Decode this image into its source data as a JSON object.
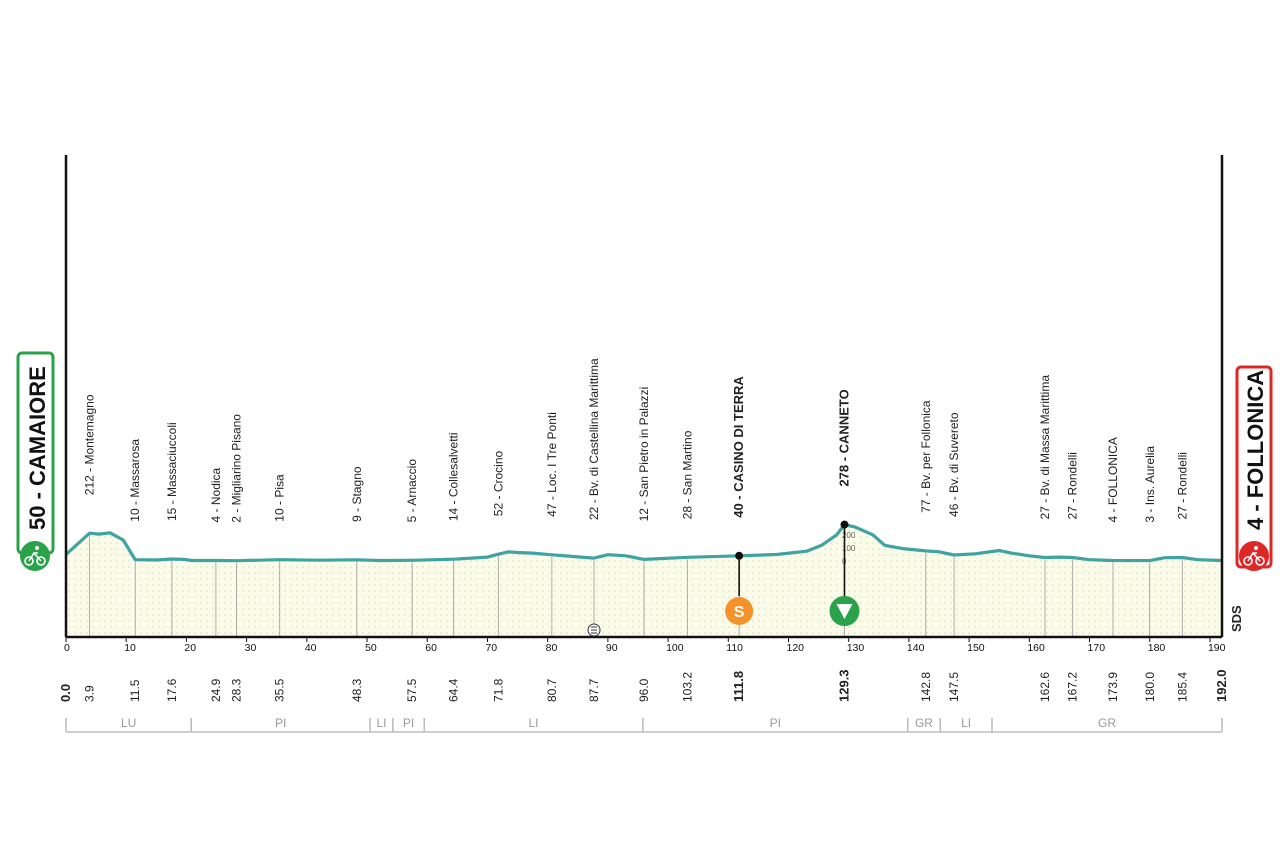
{
  "start": {
    "label": "50 - CAMAIORE",
    "color": "#2aa24a",
    "icon": "cyclist-icon"
  },
  "finish": {
    "label": "4 - FOLLONICA",
    "color": "#e02727",
    "icon": "cyclist-icon"
  },
  "watermark": "SDS",
  "chart_data": {
    "type": "area",
    "xlim": [
      0,
      192
    ],
    "ylim": [
      0,
      300
    ],
    "x_ticks": [
      0,
      10,
      20,
      30,
      40,
      50,
      60,
      70,
      80,
      90,
      100,
      110,
      120,
      130,
      140,
      150,
      160,
      170,
      180,
      190
    ],
    "y_ticks": [
      0,
      100,
      200
    ],
    "profile": [
      [
        0,
        50
      ],
      [
        3.9,
        212
      ],
      [
        5.5,
        205
      ],
      [
        7.3,
        215
      ],
      [
        9.5,
        160
      ],
      [
        11.5,
        10
      ],
      [
        15,
        8
      ],
      [
        17.6,
        15
      ],
      [
        19.5,
        12
      ],
      [
        21,
        4
      ],
      [
        24.9,
        4
      ],
      [
        28.3,
        2
      ],
      [
        35.5,
        10
      ],
      [
        42,
        6
      ],
      [
        48.3,
        9
      ],
      [
        52,
        4
      ],
      [
        57.5,
        5
      ],
      [
        64.4,
        14
      ],
      [
        70,
        30
      ],
      [
        71.8,
        52
      ],
      [
        73.5,
        70
      ],
      [
        75,
        65
      ],
      [
        77.5,
        60
      ],
      [
        80.7,
        47
      ],
      [
        84,
        35
      ],
      [
        87.7,
        22
      ],
      [
        90,
        48
      ],
      [
        93,
        40
      ],
      [
        96.0,
        12
      ],
      [
        103.2,
        28
      ],
      [
        111.8,
        40
      ],
      [
        118,
        50
      ],
      [
        123,
        75
      ],
      [
        125.5,
        120
      ],
      [
        128,
        200
      ],
      [
        129.3,
        278
      ],
      [
        131,
        260
      ],
      [
        134,
        200
      ],
      [
        136,
        120
      ],
      [
        139,
        95
      ],
      [
        142.8,
        77
      ],
      [
        145,
        70
      ],
      [
        147.5,
        46
      ],
      [
        151,
        55
      ],
      [
        155,
        80
      ],
      [
        157,
        60
      ],
      [
        160,
        40
      ],
      [
        162.6,
        27
      ],
      [
        165,
        30
      ],
      [
        167.2,
        27
      ],
      [
        170,
        10
      ],
      [
        173.9,
        4
      ],
      [
        180.0,
        3
      ],
      [
        182.5,
        25
      ],
      [
        185.4,
        27
      ],
      [
        188,
        10
      ],
      [
        192.0,
        4
      ]
    ],
    "km_markers": [
      {
        "km": "0.0",
        "x": 0,
        "bold": true
      },
      {
        "km": "3.9",
        "x": 3.9
      },
      {
        "km": "11.5",
        "x": 11.5
      },
      {
        "km": "17.6",
        "x": 17.6
      },
      {
        "km": "24.9",
        "x": 24.9
      },
      {
        "km": "28.3",
        "x": 28.3
      },
      {
        "km": "35.5",
        "x": 35.5
      },
      {
        "km": "48.3",
        "x": 48.3
      },
      {
        "km": "57.5",
        "x": 57.5
      },
      {
        "km": "64.4",
        "x": 64.4
      },
      {
        "km": "71.8",
        "x": 71.8
      },
      {
        "km": "80.7",
        "x": 80.7
      },
      {
        "km": "87.7",
        "x": 87.7
      },
      {
        "km": "96.0",
        "x": 96.0
      },
      {
        "km": "103.2",
        "x": 103.2
      },
      {
        "km": "111.8",
        "x": 111.8,
        "bold": true
      },
      {
        "km": "129.3",
        "x": 129.3,
        "bold": true
      },
      {
        "km": "142.8",
        "x": 142.8
      },
      {
        "km": "147.5",
        "x": 147.5
      },
      {
        "km": "162.6",
        "x": 162.6
      },
      {
        "km": "167.2",
        "x": 167.2
      },
      {
        "km": "173.9",
        "x": 173.9
      },
      {
        "km": "180.0",
        "x": 180.0
      },
      {
        "km": "185.4",
        "x": 185.4
      },
      {
        "km": "192.0",
        "x": 192.0,
        "bold": true
      }
    ],
    "locations": [
      {
        "x": 3.9,
        "alt": 212,
        "label": "212 - Montemagno"
      },
      {
        "x": 11.5,
        "alt": 10,
        "label": "10 - Massarosa"
      },
      {
        "x": 17.6,
        "alt": 15,
        "label": "15 - Massaciuccoli"
      },
      {
        "x": 24.9,
        "alt": 4,
        "label": "4 - Nodica"
      },
      {
        "x": 28.3,
        "alt": 2,
        "label": "2 - Migliarino Pisano"
      },
      {
        "x": 35.5,
        "alt": 10,
        "label": "10 - Pisa"
      },
      {
        "x": 48.3,
        "alt": 9,
        "label": "9 - Stagno"
      },
      {
        "x": 57.5,
        "alt": 5,
        "label": "5 - Arnaccio"
      },
      {
        "x": 64.4,
        "alt": 14,
        "label": "14 - Collesalvetti"
      },
      {
        "x": 71.8,
        "alt": 52,
        "label": "52 - Crocino"
      },
      {
        "x": 80.7,
        "alt": 47,
        "label": "47 - Loc. I Tre Ponti"
      },
      {
        "x": 87.7,
        "alt": 22,
        "label": "22 - Bv. di Castellina Marittima"
      },
      {
        "x": 96.0,
        "alt": 12,
        "label": "12 - San Pietro in Palazzi"
      },
      {
        "x": 103.2,
        "alt": 28,
        "label": "28 - San Martino"
      },
      {
        "x": 111.8,
        "alt": 40,
        "label": "40 - CASINO DI TERRA",
        "bold": true
      },
      {
        "x": 129.3,
        "alt": 278,
        "label": "278 - CANNETO",
        "bold": true
      },
      {
        "x": 142.8,
        "alt": 77,
        "label": "77 - Bv. per Follonica"
      },
      {
        "x": 147.5,
        "alt": 46,
        "label": "46 - Bv. di Suvereto"
      },
      {
        "x": 162.6,
        "alt": 27,
        "label": "27 - Bv. di Massa Marittima"
      },
      {
        "x": 167.2,
        "alt": 27,
        "label": "27 - Rondelli"
      },
      {
        "x": 173.9,
        "alt": 4,
        "label": "4 - FOLLONICA"
      },
      {
        "x": 180.0,
        "alt": 3,
        "label": "3 - Ins. Aurelia"
      },
      {
        "x": 185.4,
        "alt": 27,
        "label": "27 - Rondelli"
      }
    ],
    "sprint": {
      "x": 111.8,
      "alt": 40,
      "symbol": "S",
      "color": "#f5922a"
    },
    "kom": {
      "x": 129.3,
      "alt": 278,
      "color": "#2aa24a"
    },
    "feed_zone": {
      "x": 87.7
    },
    "provinces": [
      {
        "from": 0,
        "to": 20.8,
        "label": "LU"
      },
      {
        "from": 20.8,
        "to": 50.5,
        "label": "PI"
      },
      {
        "from": 50.5,
        "to": 54.3,
        "label": "LI"
      },
      {
        "from": 54.3,
        "to": 59.5,
        "label": "PI"
      },
      {
        "from": 59.5,
        "to": 95.8,
        "label": "LI"
      },
      {
        "from": 95.8,
        "to": 139.8,
        "label": "PI"
      },
      {
        "from": 139.8,
        "to": 145.2,
        "label": "GR"
      },
      {
        "from": 145.2,
        "to": 153.8,
        "label": "LI"
      },
      {
        "from": 153.8,
        "to": 192,
        "label": "GR"
      }
    ]
  }
}
